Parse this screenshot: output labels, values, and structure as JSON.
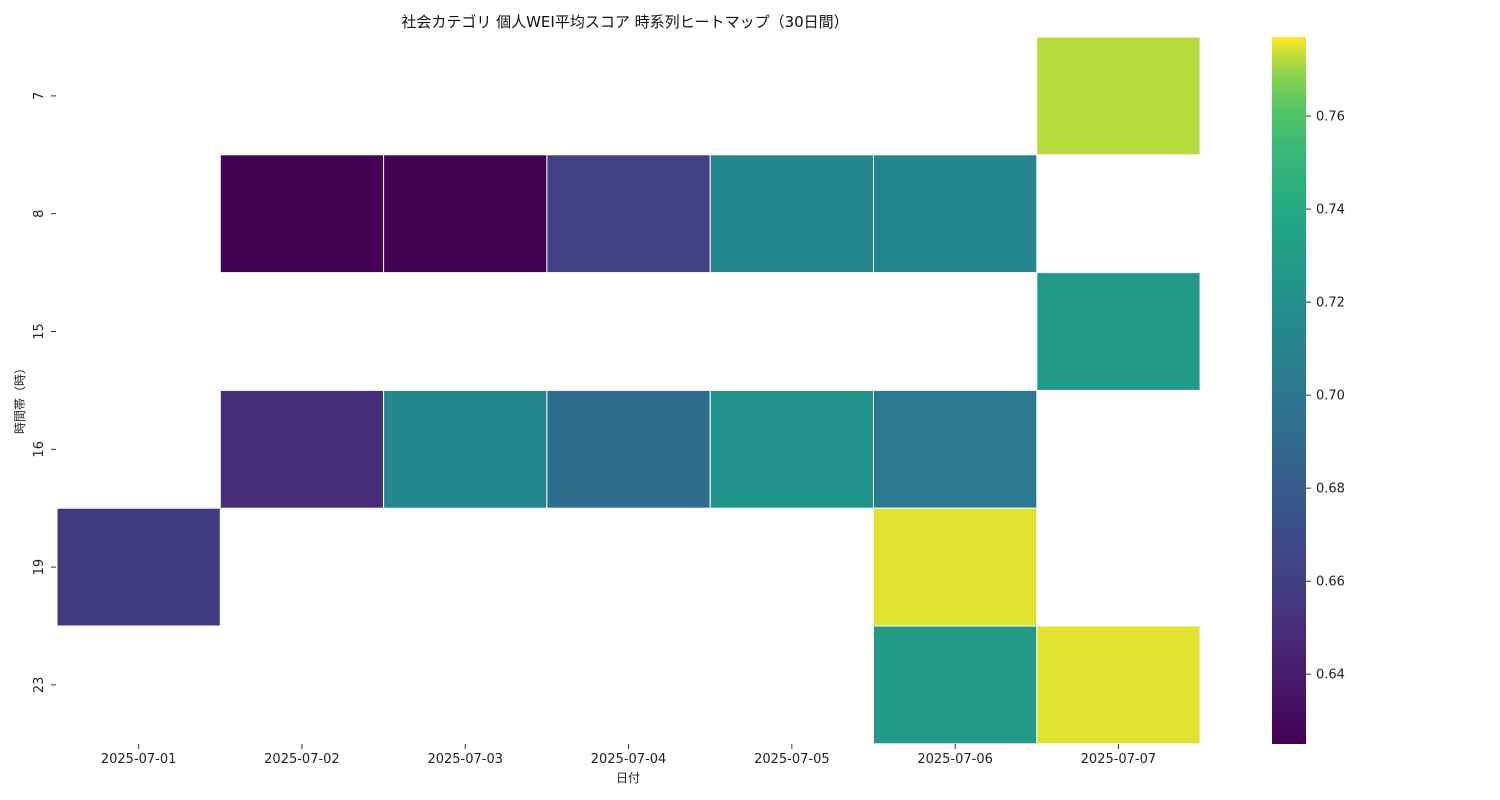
{
  "chart_data": {
    "type": "heatmap",
    "title": "社会カテゴリ 個人WEI平均スコア 時系列ヒートマップ（30日間）",
    "xlabel": "日付",
    "ylabel": "時間帯（時）",
    "x": [
      "2025-07-01",
      "2025-07-02",
      "2025-07-03",
      "2025-07-04",
      "2025-07-05",
      "2025-07-06",
      "2025-07-07"
    ],
    "y": [
      "7",
      "8",
      "15",
      "16",
      "19",
      "23"
    ],
    "values": [
      [
        null,
        null,
        null,
        null,
        null,
        null,
        0.772
      ],
      [
        null,
        0.625,
        0.625,
        0.66,
        0.711,
        0.711,
        null
      ],
      [
        null,
        null,
        null,
        null,
        null,
        null,
        0.729
      ],
      [
        null,
        0.65,
        0.711,
        0.693,
        0.722,
        0.702,
        null
      ],
      [
        0.658,
        null,
        null,
        null,
        null,
        0.775,
        null
      ],
      [
        null,
        null,
        null,
        null,
        null,
        0.729,
        0.775
      ]
    ],
    "colorscale": "viridis",
    "vmin": 0.625,
    "vmax": 0.777,
    "colorbar_ticks": [
      "0.64",
      "0.66",
      "0.68",
      "0.70",
      "0.72",
      "0.74",
      "0.76"
    ],
    "grid": false
  }
}
